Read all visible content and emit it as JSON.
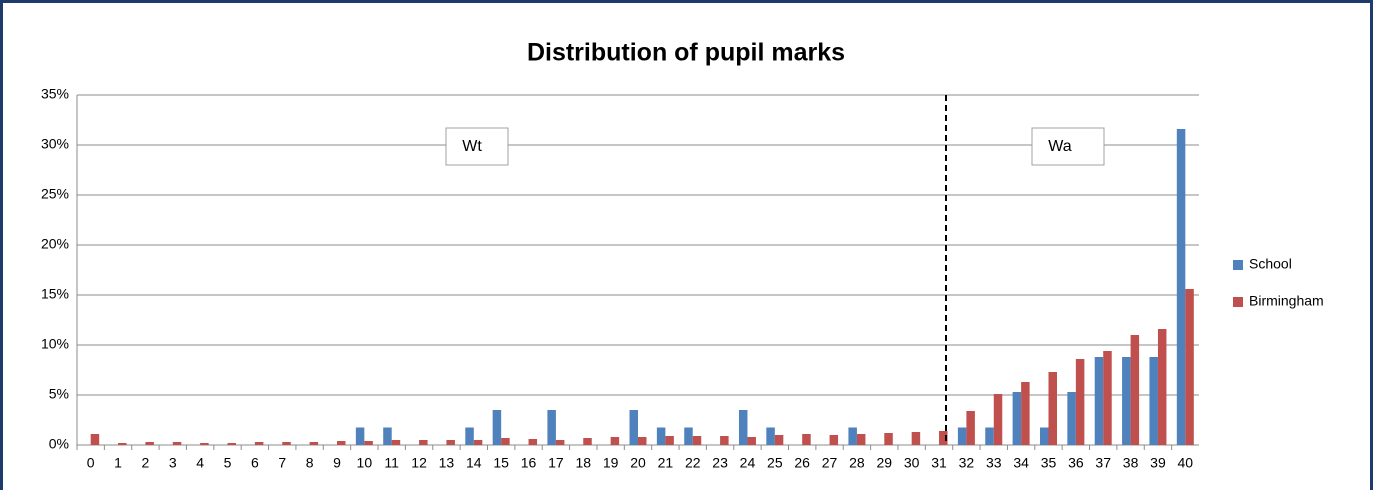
{
  "chart_data": {
    "type": "bar",
    "title": "Distribution of pupil marks",
    "categories": [
      "0",
      "1",
      "2",
      "3",
      "4",
      "5",
      "6",
      "7",
      "8",
      "9",
      "10",
      "11",
      "12",
      "13",
      "14",
      "15",
      "16",
      "17",
      "18",
      "19",
      "20",
      "21",
      "22",
      "23",
      "24",
      "25",
      "26",
      "27",
      "28",
      "29",
      "30",
      "31",
      "32",
      "33",
      "34",
      "35",
      "36",
      "37",
      "38",
      "39",
      "40"
    ],
    "series": [
      {
        "name": "School",
        "color": "#4f81bd",
        "values": [
          0,
          0,
          0,
          0,
          0,
          0,
          0,
          0,
          0,
          0,
          1.75,
          1.75,
          0,
          0,
          1.75,
          3.5,
          0,
          3.5,
          0,
          0,
          3.5,
          1.75,
          1.75,
          0,
          3.5,
          1.75,
          0,
          0,
          1.75,
          0,
          0,
          0,
          1.75,
          1.75,
          5.3,
          1.75,
          5.3,
          8.8,
          8.8,
          8.8,
          31.6
        ]
      },
      {
        "name": "Birmingham",
        "color": "#c0504d",
        "values": [
          1.1,
          0.2,
          0.3,
          0.3,
          0.2,
          0.2,
          0.3,
          0.3,
          0.3,
          0.4,
          0.4,
          0.5,
          0.5,
          0.5,
          0.5,
          0.7,
          0.6,
          0.5,
          0.7,
          0.8,
          0.8,
          0.9,
          0.9,
          0.9,
          0.8,
          1.0,
          1.1,
          1.0,
          1.1,
          1.2,
          1.3,
          1.4,
          3.4,
          5.1,
          6.3,
          7.3,
          8.6,
          9.4,
          11.0,
          11.6,
          15.6
        ]
      }
    ],
    "ylim": [
      0,
      35
    ],
    "yticks": [
      {
        "value": 0,
        "label": "0%"
      },
      {
        "value": 5,
        "label": "5%"
      },
      {
        "value": 10,
        "label": "10%"
      },
      {
        "value": 15,
        "label": "15%"
      },
      {
        "value": 20,
        "label": "20%"
      },
      {
        "value": 25,
        "label": "25%"
      },
      {
        "value": 30,
        "label": "30%"
      },
      {
        "value": 35,
        "label": "35%"
      }
    ],
    "grid": true,
    "legend": "right",
    "annotations": [
      "Wt",
      "Wa"
    ]
  }
}
